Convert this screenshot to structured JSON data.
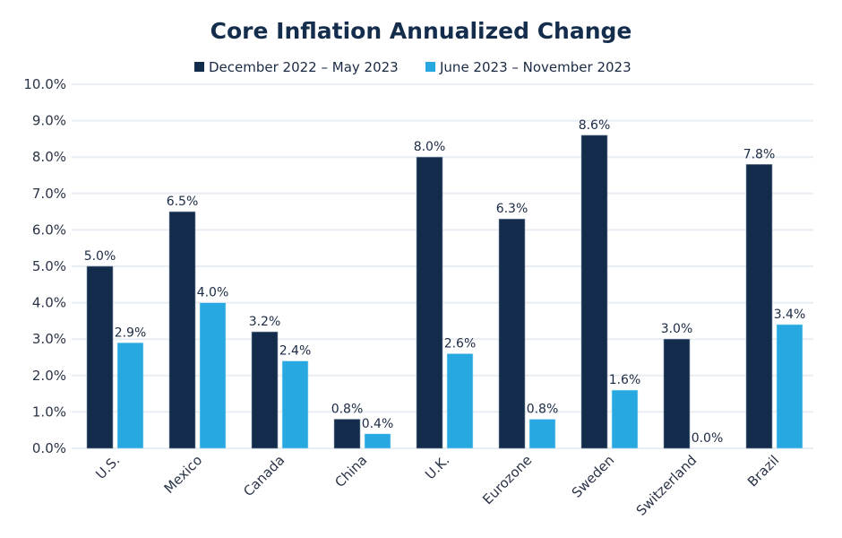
{
  "chart_data": {
    "type": "bar",
    "title": "Core Inflation Annualized Change",
    "xlabel": "",
    "ylabel": "",
    "ylim": [
      0,
      10
    ],
    "yticks": [
      "0.0%",
      "1.0%",
      "2.0%",
      "3.0%",
      "4.0%",
      "5.0%",
      "6.0%",
      "7.0%",
      "8.0%",
      "9.0%",
      "10.0%"
    ],
    "grid": true,
    "legend_position": "top-center",
    "categories": [
      "U.S.",
      "Mexico",
      "Canada",
      "China",
      "U.K.",
      "Eurozone",
      "Sweden",
      "Switzerland",
      "Brazil"
    ],
    "series": [
      {
        "name": "December 2022 – May 2023",
        "color": "#132c4b",
        "values": [
          5.0,
          6.5,
          3.2,
          0.8,
          8.0,
          6.3,
          8.6,
          3.0,
          7.8
        ],
        "labels": [
          "5.0%",
          "6.5%",
          "3.2%",
          "0.8%",
          "8.0%",
          "6.3%",
          "8.6%",
          "3.0%",
          "7.8%"
        ]
      },
      {
        "name": "June 2023 – November 2023",
        "color": "#27a8e0",
        "values": [
          2.9,
          4.0,
          2.4,
          0.4,
          2.6,
          0.8,
          1.6,
          0.0,
          3.4
        ],
        "labels": [
          "2.9%",
          "4.0%",
          "2.4%",
          "0.4%",
          "2.6%",
          "0.8%",
          "1.6%",
          "0.0%",
          "3.4%"
        ]
      }
    ]
  }
}
